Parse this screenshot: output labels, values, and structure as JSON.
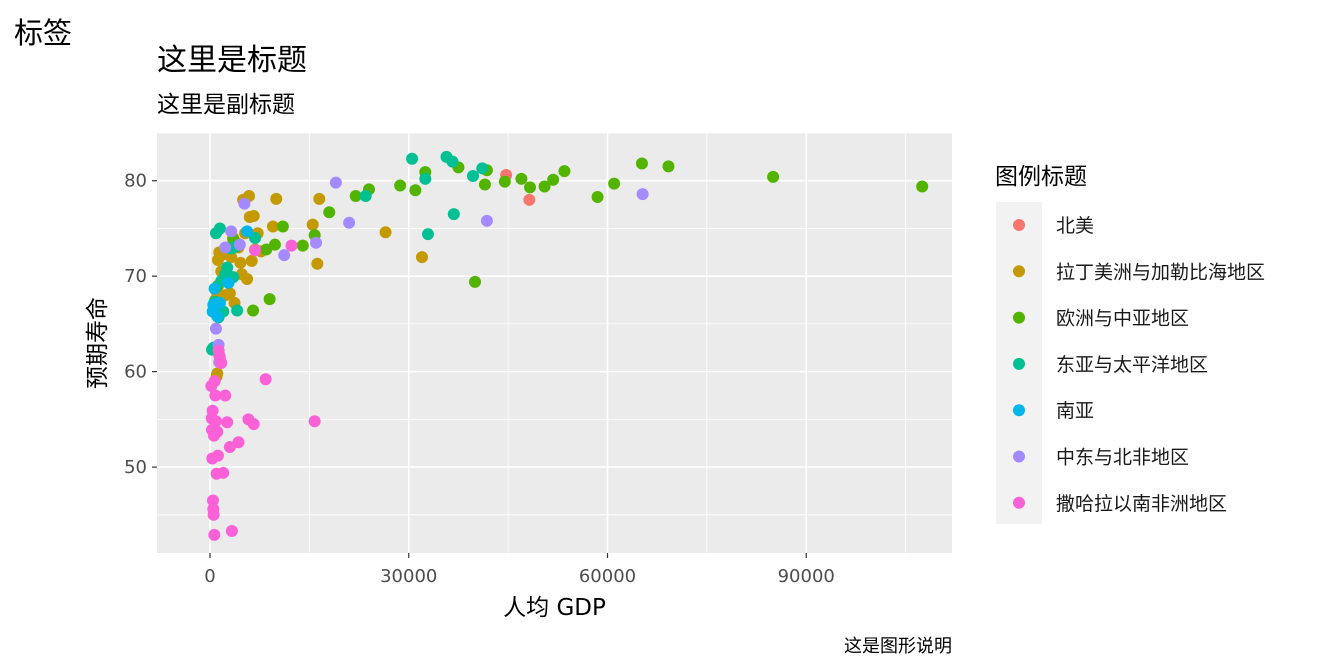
{
  "chart_data": {
    "type": "scatter",
    "tag": "标签",
    "title": "这里是标题",
    "subtitle": "这里是副标题",
    "caption": "这是图形说明",
    "xlabel": "人均 GDP",
    "ylabel": "预期寿命",
    "xlim": [
      -8000,
      112000
    ],
    "ylim": [
      41,
      85
    ],
    "x_ticks": [
      0,
      30000,
      60000,
      90000
    ],
    "x_tick_labels": [
      "0",
      "30000",
      "60000",
      "90000"
    ],
    "y_ticks": [
      50,
      60,
      70,
      80
    ],
    "y_tick_labels": [
      "50",
      "60",
      "70",
      "80"
    ],
    "grid": true,
    "legend": {
      "title": "图例标题",
      "position": "right"
    },
    "series": [
      {
        "name": "北美",
        "color": "#F8766D",
        "points": [
          [
            44700,
            80.6
          ],
          [
            48200,
            78.0
          ]
        ]
      },
      {
        "name": "拉丁美洲与加勒比海地区",
        "color": "#C49A00",
        "points": [
          [
            800,
            67.5
          ],
          [
            900,
            68.5
          ],
          [
            1000,
            59.5
          ],
          [
            1100,
            59.8
          ],
          [
            1200,
            71.7
          ],
          [
            1400,
            72.5
          ],
          [
            1700,
            70.5
          ],
          [
            2000,
            72.3
          ],
          [
            2300,
            68.0
          ],
          [
            2500,
            69.5
          ],
          [
            2800,
            73.0
          ],
          [
            3000,
            68.2
          ],
          [
            3200,
            72.0
          ],
          [
            3500,
            74.0
          ],
          [
            3700,
            67.2
          ],
          [
            4000,
            73.5
          ],
          [
            4300,
            73.0
          ],
          [
            4600,
            71.4
          ],
          [
            4800,
            70.2
          ],
          [
            5000,
            78.0
          ],
          [
            5300,
            74.5
          ],
          [
            5600,
            69.7
          ],
          [
            6000,
            76.2
          ],
          [
            5900,
            78.4
          ],
          [
            6300,
            71.6
          ],
          [
            6600,
            76.3
          ],
          [
            6800,
            72.8
          ],
          [
            7200,
            74.5
          ],
          [
            7700,
            72.6
          ],
          [
            9500,
            75.2
          ],
          [
            10000,
            78.1
          ],
          [
            15500,
            75.4
          ],
          [
            16200,
            71.3
          ],
          [
            16500,
            78.1
          ],
          [
            26500,
            74.6
          ],
          [
            32000,
            72.0
          ]
        ]
      },
      {
        "name": "欧洲与中亚地区",
        "color": "#53B400",
        "points": [
          [
            900,
            67.3
          ],
          [
            1200,
            69.0
          ],
          [
            3500,
            73.9
          ],
          [
            6500,
            66.4
          ],
          [
            8500,
            72.8
          ],
          [
            9000,
            67.6
          ],
          [
            9800,
            73.3
          ],
          [
            11000,
            75.2
          ],
          [
            14000,
            73.2
          ],
          [
            15800,
            74.3
          ],
          [
            18000,
            76.7
          ],
          [
            22000,
            78.4
          ],
          [
            24000,
            79.1
          ],
          [
            28700,
            79.5
          ],
          [
            31000,
            79.0
          ],
          [
            32500,
            80.9
          ],
          [
            37500,
            81.4
          ],
          [
            40000,
            69.4
          ],
          [
            41500,
            79.6
          ],
          [
            41800,
            81.1
          ],
          [
            44500,
            79.9
          ],
          [
            47000,
            80.2
          ],
          [
            48300,
            79.3
          ],
          [
            50500,
            79.4
          ],
          [
            51800,
            80.1
          ],
          [
            53500,
            81.0
          ],
          [
            58500,
            78.3
          ],
          [
            61000,
            79.7
          ],
          [
            65200,
            81.8
          ],
          [
            69200,
            81.5
          ],
          [
            85000,
            80.4
          ],
          [
            107500,
            79.4
          ]
        ]
      },
      {
        "name": "东亚与太平洋地区",
        "color": "#00C094",
        "points": [
          [
            300,
            62.3
          ],
          [
            500,
            62.5
          ],
          [
            700,
            67.3
          ],
          [
            900,
            74.5
          ],
          [
            1300,
            65.7
          ],
          [
            1500,
            75.0
          ],
          [
            1700,
            69.5
          ],
          [
            2000,
            66.3
          ],
          [
            2300,
            70.2
          ],
          [
            2600,
            70.9
          ],
          [
            3200,
            72.9
          ],
          [
            3500,
            69.9
          ],
          [
            3900,
            73.1
          ],
          [
            4100,
            66.4
          ],
          [
            6800,
            74.0
          ],
          [
            23500,
            78.4
          ],
          [
            30500,
            82.3
          ],
          [
            32500,
            80.2
          ],
          [
            32900,
            74.4
          ],
          [
            35700,
            82.5
          ],
          [
            36600,
            82.0
          ],
          [
            36800,
            76.5
          ],
          [
            39700,
            80.5
          ],
          [
            41100,
            81.3
          ]
        ]
      },
      {
        "name": "南亚",
        "color": "#00B6EB",
        "points": [
          [
            400,
            66.3
          ],
          [
            500,
            67.0
          ],
          [
            700,
            68.7
          ],
          [
            1100,
            65.8
          ],
          [
            1500,
            67.2
          ],
          [
            2800,
            69.3
          ],
          [
            5600,
            74.7
          ]
        ]
      },
      {
        "name": "中东与北非地区",
        "color": "#A58AFF",
        "points": [
          [
            900,
            64.5
          ],
          [
            1300,
            62.8
          ],
          [
            1400,
            61.0
          ],
          [
            2300,
            73.0
          ],
          [
            3200,
            74.7
          ],
          [
            4500,
            73.3
          ],
          [
            5200,
            77.6
          ],
          [
            11200,
            72.2
          ],
          [
            16000,
            73.5
          ],
          [
            19000,
            79.8
          ],
          [
            21000,
            75.6
          ],
          [
            41800,
            75.8
          ],
          [
            65300,
            78.6
          ]
        ]
      },
      {
        "name": "撒哈拉以南非洲地区",
        "color": "#FB61D7",
        "points": [
          [
            200,
            58.5
          ],
          [
            250,
            55.1
          ],
          [
            300,
            53.9
          ],
          [
            350,
            50.9
          ],
          [
            400,
            55.9
          ],
          [
            450,
            46.5
          ],
          [
            500,
            45.6
          ],
          [
            550,
            45.0
          ],
          [
            600,
            53.3
          ],
          [
            650,
            42.9
          ],
          [
            700,
            59.0
          ],
          [
            800,
            57.5
          ],
          [
            900,
            54.8
          ],
          [
            1000,
            49.3
          ],
          [
            1100,
            53.7
          ],
          [
            1200,
            51.2
          ],
          [
            1300,
            62.2
          ],
          [
            1400,
            61.7
          ],
          [
            1500,
            61.5
          ],
          [
            1700,
            60.9
          ],
          [
            2000,
            49.4
          ],
          [
            2300,
            57.5
          ],
          [
            2600,
            54.7
          ],
          [
            3000,
            52.1
          ],
          [
            3300,
            43.3
          ],
          [
            4300,
            52.6
          ],
          [
            5800,
            55.0
          ],
          [
            6600,
            54.5
          ],
          [
            6800,
            72.7
          ],
          [
            8400,
            59.2
          ],
          [
            12300,
            73.2
          ],
          [
            15800,
            54.8
          ]
        ]
      }
    ]
  }
}
